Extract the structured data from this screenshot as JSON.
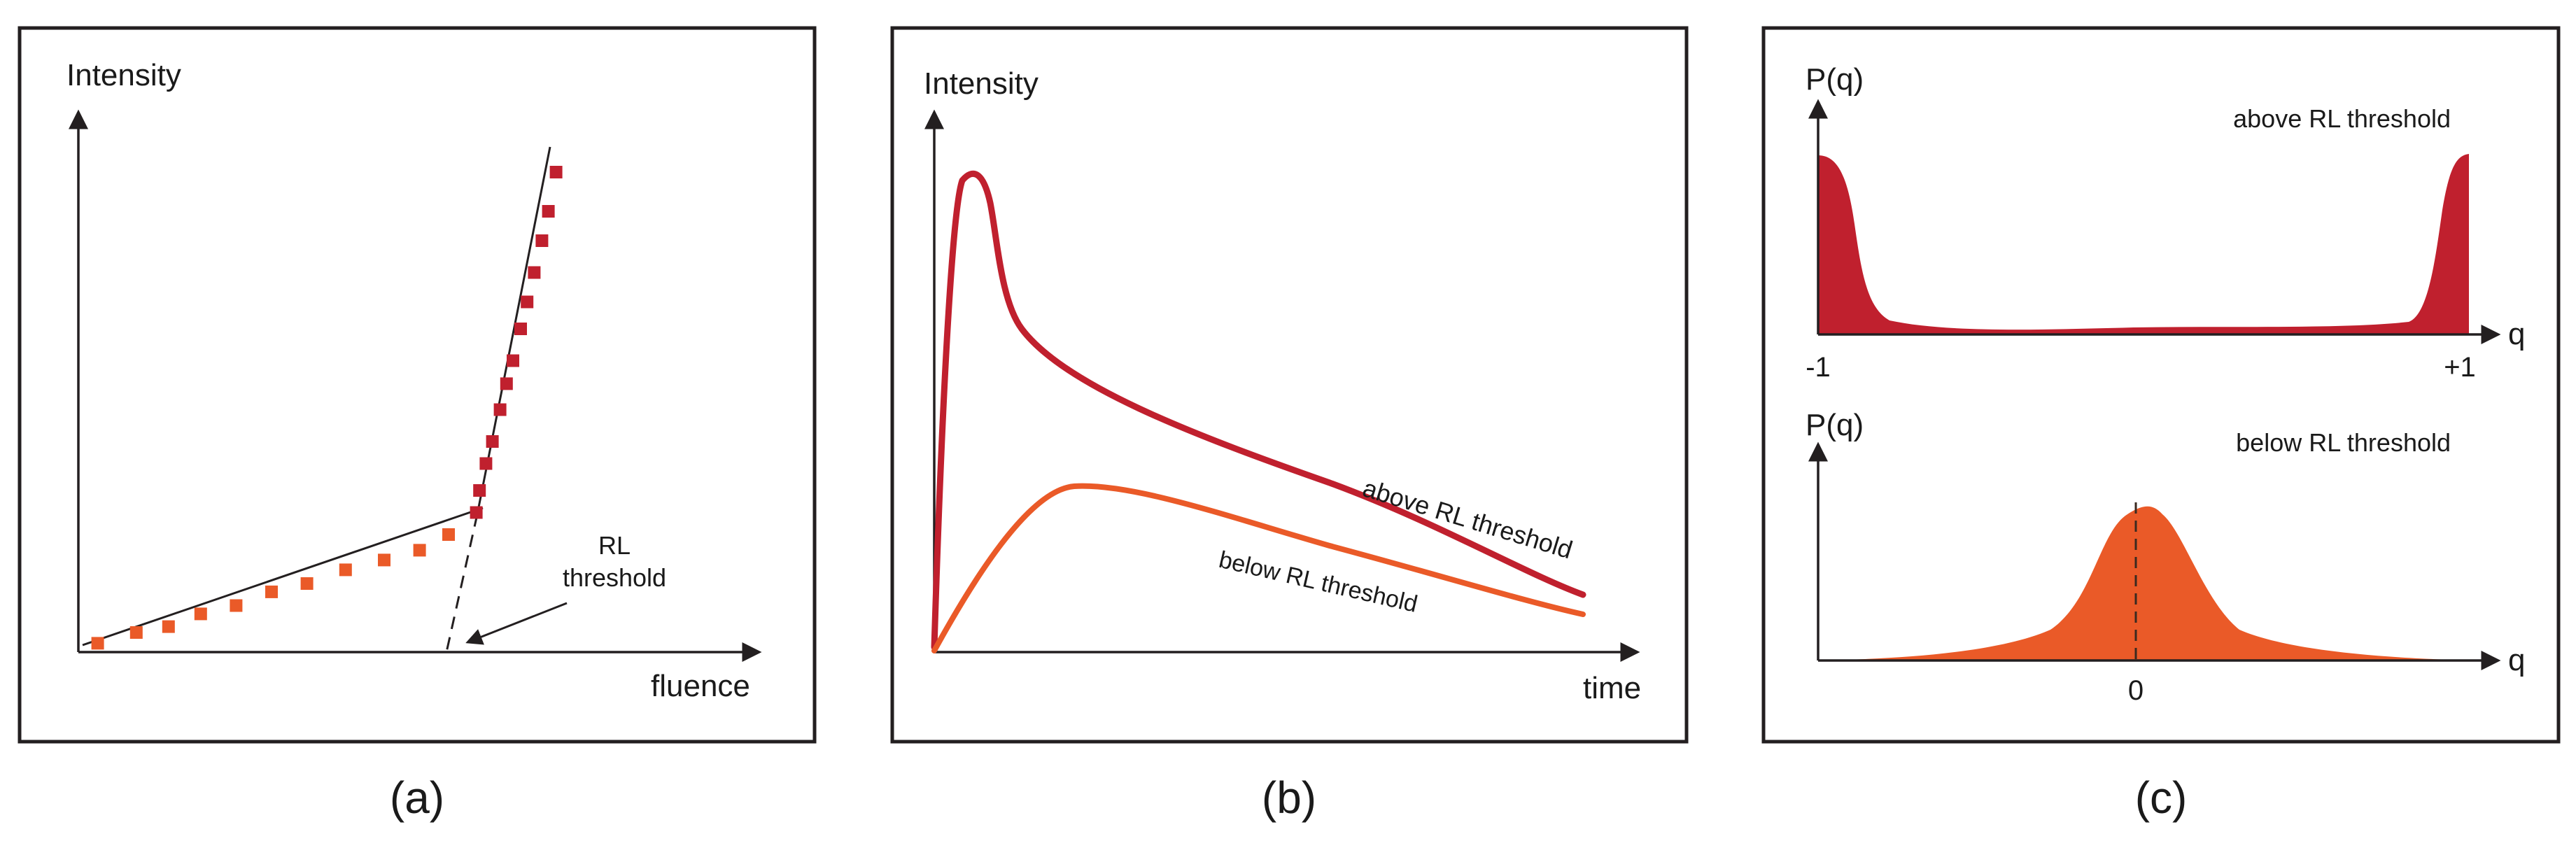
{
  "colors": {
    "above": "#c0202e",
    "below": "#ea5a28",
    "frame": "#231f20",
    "text": "#1a1a1a"
  },
  "panel_a": {
    "caption": "(a)",
    "ylabel": "Intensity",
    "xlabel": "fluence",
    "threshold_label_line1": "RL",
    "threshold_label_line2": "threshold",
    "below_points": [
      [
        0.03,
        0.018
      ],
      [
        0.09,
        0.04
      ],
      [
        0.14,
        0.052
      ],
      [
        0.19,
        0.078
      ],
      [
        0.245,
        0.095
      ],
      [
        0.3,
        0.123
      ],
      [
        0.355,
        0.14
      ],
      [
        0.415,
        0.168
      ],
      [
        0.475,
        0.188
      ],
      [
        0.53,
        0.208
      ],
      [
        0.575,
        0.24
      ]
    ],
    "above_points": [
      [
        0.618,
        0.285
      ],
      [
        0.623,
        0.33
      ],
      [
        0.633,
        0.385
      ],
      [
        0.643,
        0.43
      ],
      [
        0.655,
        0.495
      ],
      [
        0.665,
        0.548
      ],
      [
        0.675,
        0.595
      ],
      [
        0.687,
        0.66
      ],
      [
        0.697,
        0.715
      ],
      [
        0.708,
        0.775
      ],
      [
        0.72,
        0.84
      ],
      [
        0.73,
        0.9
      ],
      [
        0.742,
        0.98
      ]
    ]
  },
  "panel_b": {
    "caption": "(b)",
    "ylabel": "Intensity",
    "xlabel": "time",
    "above_label": "above RL threshold",
    "below_label": "below RL threshold"
  },
  "panel_c": {
    "caption": "(c)",
    "top": {
      "ylabel": "P(q)",
      "xlabel": "q",
      "label": "above RL threshold",
      "tick_left": "-1",
      "tick_right": "+1"
    },
    "bottom": {
      "ylabel": "P(q)",
      "xlabel": "q",
      "label": "below RL threshold",
      "tick_center": "0"
    }
  }
}
